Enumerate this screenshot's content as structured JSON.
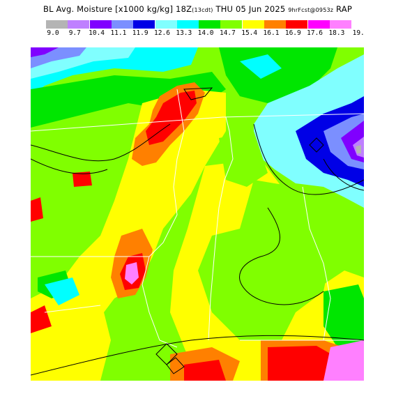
{
  "title": {
    "prefix": "BL Avg. Moisture [x1000 kg/kg] 18Z",
    "local_time": "(13cdt)",
    "date": "THU 05 Jun 2025",
    "forecast": "9hrFcst@0953z",
    "model": "RAP"
  },
  "legend": {
    "colors": [
      "#b4b4b4",
      "#bf80ff",
      "#8000ff",
      "#7b8fff",
      "#0000e6",
      "#80ffff",
      "#00ffff",
      "#00e600",
      "#80ff00",
      "#ffff00",
      "#ff8000",
      "#ff0000",
      "#ff00ff",
      "#ff80ff"
    ],
    "ticks": [
      "9.0",
      "9.7",
      "10.4",
      "11.1",
      "11.9",
      "12.6",
      "13.3",
      "14.0",
      "14.7",
      "15.4",
      "16.1",
      "16.9",
      "17.6",
      "18.3",
      "19."
    ]
  }
}
